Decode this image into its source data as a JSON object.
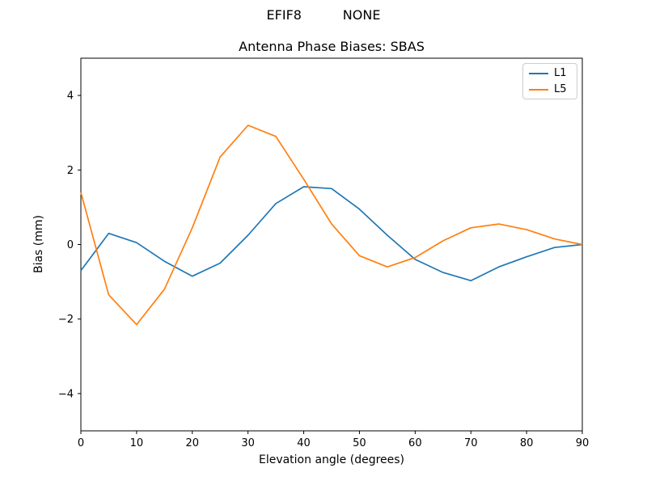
{
  "figure": {
    "suptitle": "EFIF8          NONE",
    "background": "#ffffff"
  },
  "chart_data": {
    "type": "line",
    "title": "Antenna Phase Biases: SBAS",
    "xlabel": "Elevation angle (degrees)",
    "ylabel": "Bias (mm)",
    "xlim": [
      0,
      90
    ],
    "ylim": [
      -5,
      5
    ],
    "xticks": [
      0,
      10,
      20,
      30,
      40,
      50,
      60,
      70,
      80,
      90
    ],
    "yticks": [
      -4,
      -2,
      0,
      2,
      4
    ],
    "grid": false,
    "legend_position": "upper right",
    "axis_color": "#000000",
    "x": [
      0,
      5,
      10,
      15,
      20,
      25,
      30,
      35,
      40,
      45,
      50,
      55,
      60,
      65,
      70,
      75,
      80,
      85,
      90
    ],
    "series": [
      {
        "name": "L1",
        "color": "#1f77b4",
        "values": [
          -0.7,
          0.3,
          0.05,
          -0.45,
          -0.85,
          -0.5,
          0.25,
          1.1,
          1.55,
          1.5,
          0.95,
          0.25,
          -0.4,
          -0.75,
          -0.97,
          -0.6,
          -0.33,
          -0.08,
          0.0
        ]
      },
      {
        "name": "L5",
        "color": "#ff7f0e",
        "values": [
          1.4,
          -1.35,
          -2.15,
          -1.2,
          0.45,
          2.35,
          3.2,
          2.9,
          1.75,
          0.55,
          -0.3,
          -0.6,
          -0.35,
          0.1,
          0.45,
          0.55,
          0.4,
          0.15,
          0.0
        ]
      }
    ]
  }
}
